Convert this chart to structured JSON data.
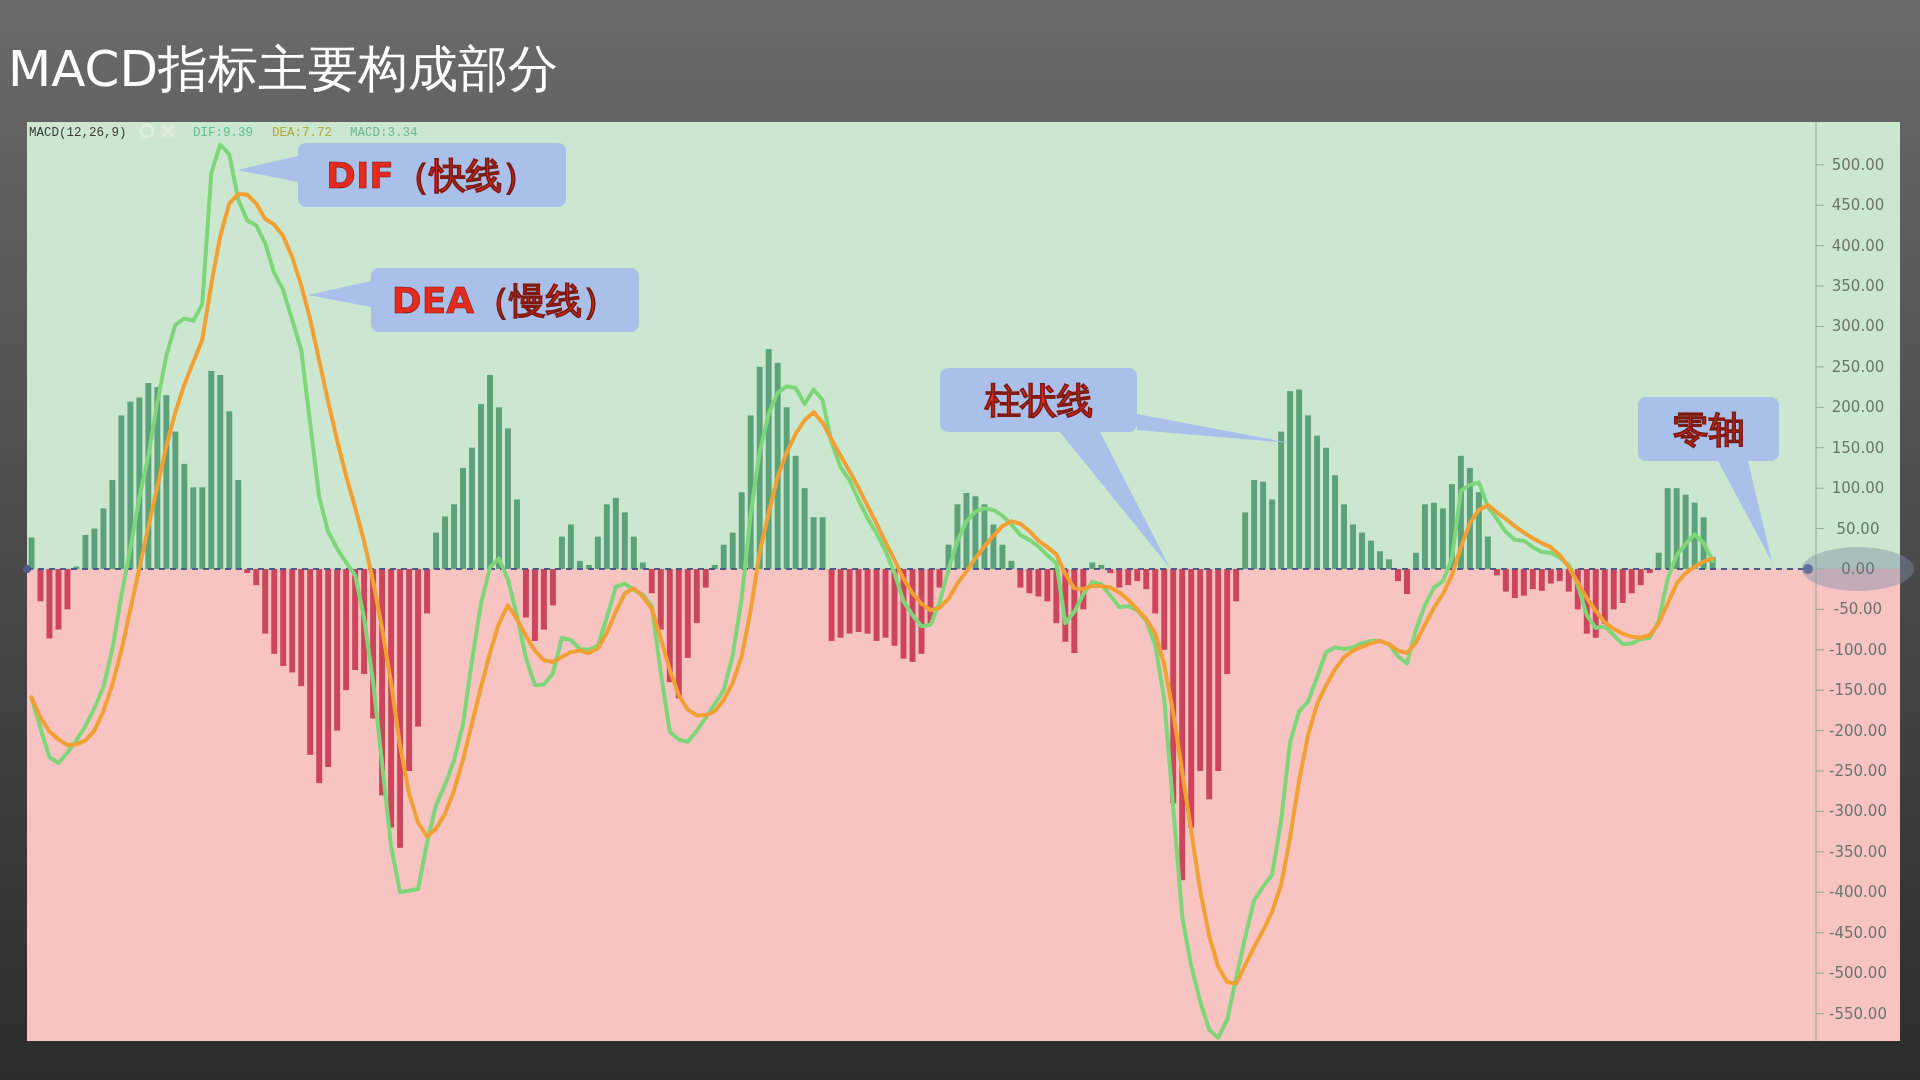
{
  "chart_data": {
    "type": "bar",
    "title": "MACD指标主要构成部分",
    "annotations": [
      "MACD(12,26,9)",
      "DIF:9.39",
      "DEA:7.72",
      "MACD:3.34",
      "DIF（快线）",
      "DEA（慢线）",
      "柱状线",
      "零轴"
    ],
    "categories": [
      null,
      null,
      null,
      null,
      null,
      null,
      null,
      null,
      null,
      null,
      null,
      null,
      null,
      null,
      null,
      null,
      null,
      null,
      null,
      null,
      null,
      null,
      null,
      null,
      null,
      null,
      null,
      null,
      null,
      null,
      null,
      null,
      null,
      null,
      null,
      null,
      null,
      null,
      null,
      null,
      null,
      null,
      null,
      null,
      null,
      null,
      null,
      null,
      null,
      null,
      null,
      null,
      null,
      null,
      null,
      null,
      null,
      null,
      null,
      null,
      null,
      null,
      null,
      null,
      null,
      null,
      null,
      null,
      null,
      null,
      null,
      null,
      null,
      null,
      null,
      null,
      null,
      null,
      null,
      null,
      null,
      null,
      null,
      null,
      null,
      null,
      null,
      null,
      null,
      null,
      null,
      null,
      null,
      null,
      null,
      null,
      null,
      null,
      null,
      null,
      null,
      null,
      null,
      null,
      null,
      null,
      null,
      null,
      null,
      null,
      null,
      null,
      null,
      null,
      null,
      null,
      null,
      null,
      null,
      null,
      null,
      null,
      null,
      null,
      null,
      null,
      null,
      null,
      null,
      null,
      null,
      null,
      null,
      null,
      null,
      null,
      null,
      null,
      null,
      null,
      null,
      null,
      null,
      null,
      null,
      null,
      null,
      null,
      null,
      null,
      null,
      null,
      null,
      null,
      null,
      null,
      null,
      null,
      null,
      null,
      null,
      null,
      null,
      null,
      null,
      null,
      null,
      null,
      null,
      null,
      null,
      null,
      null,
      null,
      null,
      null,
      null,
      null,
      null,
      null,
      null,
      null,
      null,
      null,
      null,
      null,
      null,
      null
    ],
    "series": [
      {
        "color": "#4f9a70",
        "values": [
          39,
          -40,
          -86,
          -75,
          -50,
          3,
          42,
          50,
          75,
          110,
          190,
          207,
          212,
          230,
          225,
          215,
          170,
          130,
          101,
          101,
          245,
          240,
          195,
          110,
          -5,
          -20,
          -80,
          -105,
          -120,
          -128,
          -145,
          -230,
          -265,
          -245,
          -200,
          -150,
          -125,
          -130,
          -185,
          -280,
          -320,
          -345,
          -250,
          -195,
          -55,
          45,
          65,
          80,
          125,
          150,
          204,
          240,
          200,
          174,
          86,
          -60,
          -89,
          -75,
          -45,
          40,
          55,
          10,
          5,
          40,
          80,
          88,
          70,
          40,
          8,
          -30,
          -75,
          -140,
          -160,
          -110,
          -67,
          -23,
          5,
          30,
          45,
          95,
          190,
          250,
          272,
          255,
          200,
          140,
          100,
          64,
          64,
          -89,
          -85,
          -80,
          -78,
          -80,
          -89,
          -85,
          -95,
          -111,
          -115,
          -105,
          -67,
          -23,
          30,
          80,
          94,
          90,
          80,
          55,
          30,
          10,
          -23,
          -30,
          -34,
          -40,
          -67,
          -90,
          -104,
          -50,
          8,
          5,
          -5,
          -23,
          -20,
          -15,
          -25,
          -55,
          -100,
          -290,
          -385,
          -320,
          -250,
          -285,
          -250,
          -130,
          -40,
          70,
          110,
          108,
          86,
          170,
          220,
          222,
          190,
          165,
          150,
          116,
          80,
          55,
          45,
          35,
          22,
          12,
          -15,
          -31,
          20,
          80,
          82,
          75,
          105,
          140,
          125,
          95,
          40,
          -8,
          -28,
          -36,
          -33,
          -25,
          -27,
          -18,
          -15,
          -28,
          -50,
          -80,
          -85,
          -68,
          -50,
          -42,
          -30,
          -20,
          -5,
          20,
          100,
          100,
          92,
          82,
          64,
          15
        ],
        "colors": [
          "#4f9a70",
          "#c8374f",
          "#c8374f",
          "#c8374f",
          "#c8374f",
          "#4f9a70",
          "#4f9a70",
          "#4f9a70",
          "#4f9a70",
          "#4f9a70",
          "#4f9a70",
          "#4f9a70",
          "#4f9a70",
          "#4f9a70",
          "#4f9a70",
          "#4f9a70",
          "#4f9a70",
          "#4f9a70",
          "#4f9a70",
          "#4f9a70",
          "#4f9a70",
          "#4f9a70",
          "#4f9a70",
          "#4f9a70",
          "#c8374f",
          "#c8374f",
          "#c8374f",
          "#c8374f",
          "#c8374f",
          "#c8374f",
          "#c8374f",
          "#c8374f",
          "#c8374f",
          "#c8374f",
          "#c8374f",
          "#c8374f",
          "#c8374f",
          "#c8374f",
          "#c8374f",
          "#c8374f",
          "#c8374f",
          "#c8374f",
          "#c8374f",
          "#c8374f",
          "#c8374f",
          "#4f9a70",
          "#4f9a70",
          "#4f9a70",
          "#4f9a70",
          "#4f9a70",
          "#4f9a70",
          "#4f9a70",
          "#4f9a70",
          "#4f9a70",
          "#4f9a70",
          "#c8374f",
          "#c8374f",
          "#c8374f",
          "#c8374f",
          "#4f9a70",
          "#4f9a70",
          "#4f9a70",
          "#4f9a70",
          "#4f9a70",
          "#4f9a70",
          "#4f9a70",
          "#4f9a70",
          "#4f9a70",
          "#4f9a70",
          "#c8374f",
          "#c8374f",
          "#c8374f",
          "#c8374f",
          "#c8374f",
          "#c8374f",
          "#c8374f",
          "#4f9a70",
          "#4f9a70",
          "#4f9a70",
          "#4f9a70",
          "#4f9a70",
          "#4f9a70",
          "#4f9a70",
          "#4f9a70",
          "#4f9a70",
          "#4f9a70",
          "#4f9a70",
          "#4f9a70",
          "#4f9a70",
          "#c8374f",
          "#c8374f",
          "#c8374f",
          "#c8374f",
          "#c8374f",
          "#c8374f",
          "#c8374f",
          "#c8374f",
          "#c8374f",
          "#c8374f",
          "#c8374f",
          "#c8374f",
          "#c8374f",
          "#4f9a70",
          "#4f9a70",
          "#4f9a70",
          "#4f9a70",
          "#4f9a70",
          "#4f9a70",
          "#4f9a70",
          "#4f9a70",
          "#c8374f",
          "#c8374f",
          "#c8374f",
          "#c8374f",
          "#c8374f",
          "#c8374f",
          "#c8374f",
          "#c8374f",
          "#4f9a70",
          "#4f9a70",
          "#c8374f",
          "#c8374f",
          "#c8374f",
          "#c8374f",
          "#c8374f",
          "#c8374f",
          "#c8374f",
          "#c8374f",
          "#c8374f",
          "#c8374f",
          "#c8374f",
          "#c8374f",
          "#c8374f",
          "#c8374f",
          "#c8374f",
          "#4f9a70",
          "#4f9a70",
          "#4f9a70",
          "#4f9a70",
          "#4f9a70",
          "#4f9a70",
          "#4f9a70",
          "#4f9a70",
          "#4f9a70",
          "#4f9a70",
          "#4f9a70",
          "#4f9a70",
          "#4f9a70",
          "#4f9a70",
          "#4f9a70",
          "#4f9a70",
          "#4f9a70",
          "#c8374f",
          "#c8374f",
          "#4f9a70",
          "#4f9a70",
          "#4f9a70",
          "#4f9a70",
          "#4f9a70",
          "#4f9a70",
          "#4f9a70",
          "#4f9a70",
          "#4f9a70",
          "#c8374f",
          "#c8374f",
          "#c8374f",
          "#c8374f",
          "#c8374f",
          "#c8374f",
          "#c8374f",
          "#c8374f",
          "#c8374f",
          "#c8374f",
          "#c8374f",
          "#c8374f",
          "#c8374f",
          "#c8374f",
          "#c8374f",
          "#c8374f",
          "#c8374f",
          "#c8374f",
          "#4f9a70",
          "#4f9a70",
          "#4f9a70",
          "#4f9a70",
          "#4f9a70",
          "#4f9a70",
          "#4f9a70"
        ]
      },
      {
        "type": "line",
        "color": "#7ed67a",
        "values": [
          -159,
          -197,
          -233,
          -240,
          -227,
          -212,
          -194,
          -172,
          -146,
          -99,
          -33,
          26,
          88,
          140,
          206,
          264,
          302,
          310,
          307,
          328,
          490,
          525,
          513,
          457,
          431,
          425,
          403,
          366,
          345,
          308,
          271,
          180,
          89,
          46,
          25,
          8,
          -8,
          -61,
          -140,
          -241,
          -343,
          -400,
          -398,
          -396,
          -339,
          -292,
          -267,
          -237,
          -192,
          -113,
          -43,
          2,
          13,
          -13,
          -58,
          -110,
          -144,
          -143,
          -129,
          -85,
          -88,
          -99,
          -100,
          -95,
          -60,
          -22,
          -18,
          -26,
          -32,
          -46,
          -128,
          -201,
          -211,
          -214,
          -200,
          -184,
          -167,
          -150,
          -107,
          -36,
          68,
          145,
          192,
          218,
          226,
          224,
          204,
          222,
          209,
          156,
          126,
          110,
          85,
          63,
          44,
          22,
          -5,
          -40,
          -57,
          -71,
          -69,
          -42,
          -1,
          35,
          59,
          71,
          75,
          73,
          66,
          55,
          42,
          36,
          28,
          17,
          7,
          -67,
          -53,
          -31,
          -16,
          -19,
          -33,
          -47,
          -46,
          -51,
          -64,
          -94,
          -161,
          -295,
          -430,
          -491,
          -535,
          -570,
          -580,
          -558,
          -506,
          -456,
          -410,
          -393,
          -378,
          -312,
          -214,
          -176,
          -164,
          -134,
          -103,
          -97,
          -99,
          -97,
          -92,
          -89,
          -89,
          -93,
          -108,
          -117,
          -75,
          -45,
          -23,
          -15,
          13,
          97,
          104,
          107,
          77,
          62,
          46,
          36,
          35,
          27,
          21,
          20,
          14,
          5,
          -20,
          -57,
          -73,
          -71,
          -82,
          -93,
          -92,
          -87,
          -85,
          -65,
          -12,
          17,
          31,
          43,
          32,
          10
        ]
      },
      {
        "type": "line",
        "color": "#f2a034",
        "values": [
          -159,
          -184,
          -201,
          -211,
          -218,
          -217,
          -212,
          -200,
          -176,
          -143,
          -101,
          -50,
          1,
          52,
          102,
          152,
          194,
          228,
          256,
          284,
          352,
          412,
          452,
          464,
          463,
          452,
          433,
          426,
          412,
          386,
          351,
          309,
          258,
          207,
          159,
          115,
          76,
          34,
          -15,
          -74,
          -141,
          -219,
          -278,
          -314,
          -331,
          -321,
          -303,
          -274,
          -236,
          -191,
          -146,
          -104,
          -67,
          -45,
          -62,
          -83,
          -101,
          -113,
          -115,
          -109,
          -103,
          -101,
          -104,
          -98,
          -79,
          -53,
          -30,
          -24,
          -34,
          -49,
          -86,
          -125,
          -156,
          -174,
          -181,
          -181,
          -176,
          -162,
          -141,
          -108,
          -51,
          21,
          69,
          114,
          144,
          167,
          184,
          194,
          181,
          160,
          140,
          121,
          100,
          78,
          56,
          33,
          11,
          -12,
          -30,
          -43,
          -51,
          -48,
          -37,
          -18,
          -3,
          13,
          28,
          41,
          53,
          59,
          56,
          47,
          35,
          27,
          18,
          -6,
          -24,
          -25,
          -21,
          -21,
          -23,
          -29,
          -38,
          -50,
          -62,
          -80,
          -118,
          -178,
          -251,
          -324,
          -398,
          -454,
          -492,
          -511,
          -513,
          -490,
          -468,
          -447,
          -424,
          -391,
          -332,
          -262,
          -206,
          -167,
          -144,
          -124,
          -109,
          -101,
          -96,
          -92,
          -89,
          -93,
          -101,
          -104,
          -91,
          -69,
          -48,
          -31,
          -8,
          27,
          57,
          73,
          79,
          70,
          62,
          53,
          45,
          38,
          32,
          27,
          17,
          2,
          -17,
          -36,
          -52,
          -66,
          -74,
          -80,
          -84,
          -85,
          -82,
          -67,
          -43,
          -18,
          -5,
          3,
          9,
          13
        ]
      }
    ],
    "ylim": [
      -584,
      553
    ],
    "yticks": [
      {
        "value": -550,
        "label": "-550.00"
      },
      {
        "value": -500,
        "label": "-500.00"
      },
      {
        "value": -450,
        "label": "-450.00"
      },
      {
        "value": -400,
        "label": "-400.00"
      },
      {
        "value": -350,
        "label": "-350.00"
      },
      {
        "value": -300,
        "label": "-300.00"
      },
      {
        "value": -250,
        "label": "-250.00"
      },
      {
        "value": -200,
        "label": "-200.00"
      },
      {
        "value": -150,
        "label": "-150.00"
      },
      {
        "value": -100,
        "label": "-100.00"
      },
      {
        "value": -50,
        "label": "-50.00"
      },
      {
        "value": 0,
        "label": "0.00"
      },
      {
        "value": 50,
        "label": "50.00"
      },
      {
        "value": 100,
        "label": "100.00"
      },
      {
        "value": 150,
        "label": "150.00"
      },
      {
        "value": 200,
        "label": "200.00"
      },
      {
        "value": 250,
        "label": "250.00"
      },
      {
        "value": 300,
        "label": "300.00"
      },
      {
        "value": 350,
        "label": "350.00"
      },
      {
        "value": 400,
        "label": "400.00"
      },
      {
        "value": 450,
        "label": "450.00"
      },
      {
        "value": 500,
        "label": "500.00"
      }
    ],
    "tick_labels": "y",
    "bands": [
      {
        "axis": "y",
        "from": 0,
        "to": 553,
        "color": "#cce7cf"
      },
      {
        "axis": "y",
        "from": -584,
        "to": 0,
        "color": "#f7c4c1"
      }
    ],
    "ref_lines": [
      {
        "axis": "y",
        "value": 0,
        "color": "#4c5a88",
        "line_style": "dashed"
      }
    ]
  }
}
